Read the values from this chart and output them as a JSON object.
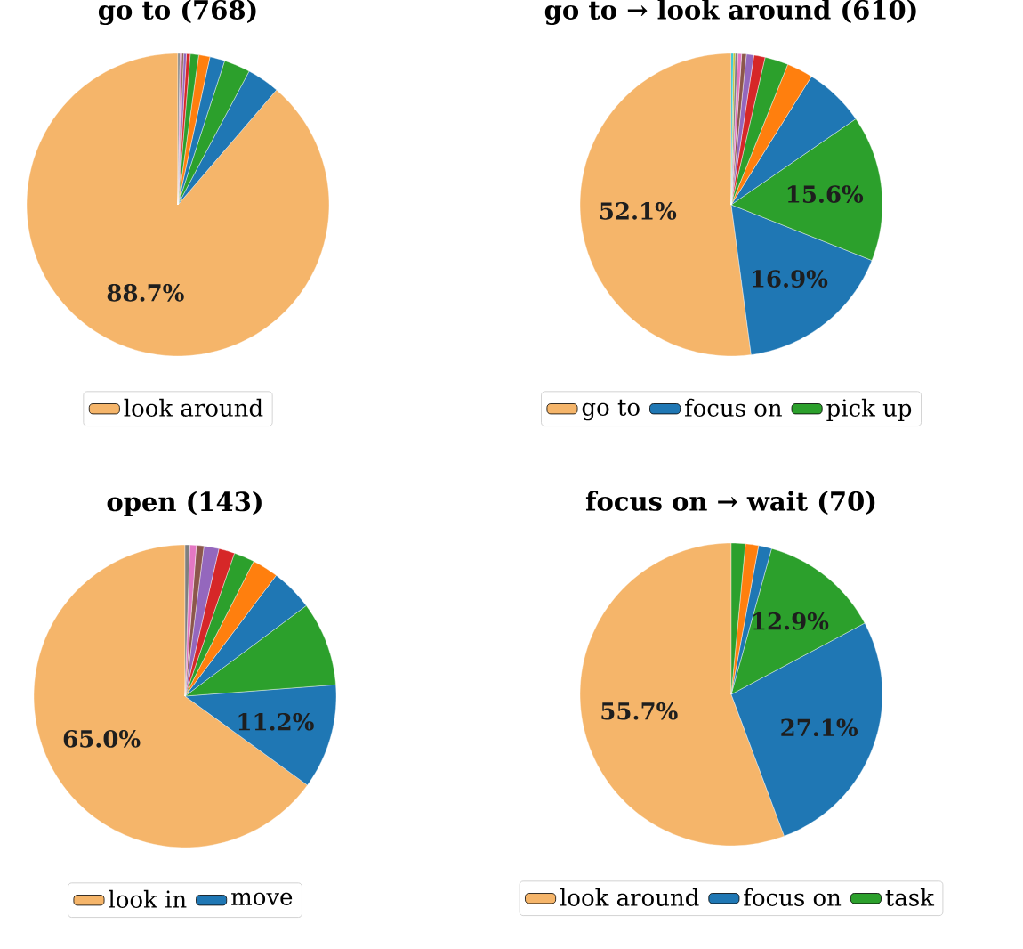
{
  "chart_data": [
    {
      "type": "pie",
      "title": "go to (768)",
      "legend": "bottom",
      "categories": [
        "look around",
        null,
        null,
        null,
        null,
        null,
        null,
        null,
        null,
        null,
        null
      ],
      "values": [
        88.7,
        3.5,
        2.8,
        1.6,
        1.2,
        0.9,
        0.4,
        0.3,
        0.2,
        0.2,
        0.2
      ],
      "colors": [
        "#f5b56a",
        "#1f77b4",
        "#2ca02c",
        "#1f77b4",
        "#ff7f0e",
        "#2ca02c",
        "#d62728",
        "#9467bd",
        "#8c564b",
        "#e377c2",
        "#7f7f7f"
      ],
      "value_labels": [
        "88.7%",
        null,
        null,
        null,
        null,
        null,
        null,
        null,
        null,
        null,
        null
      ]
    },
    {
      "type": "pie",
      "title": "go to → look around (610)",
      "legend": "bottom",
      "categories": [
        "go to",
        "focus on",
        "pick up",
        null,
        null,
        null,
        null,
        null,
        null,
        null,
        null,
        null,
        null
      ],
      "values": [
        52.1,
        16.9,
        15.6,
        6.5,
        2.8,
        2.5,
        1.2,
        0.8,
        0.5,
        0.4,
        0.3,
        0.2,
        0.2
      ],
      "colors": [
        "#f5b56a",
        "#1f77b4",
        "#2ca02c",
        "#1f77b4",
        "#ff7f0e",
        "#2ca02c",
        "#d62728",
        "#9467bd",
        "#8c564b",
        "#e377c2",
        "#7f7f7f",
        "#bcbd22",
        "#17becf"
      ],
      "value_labels": [
        "52.1%",
        "16.9%",
        "15.6%",
        null,
        null,
        null,
        null,
        null,
        null,
        null,
        null,
        null,
        null
      ]
    },
    {
      "type": "pie",
      "title": "open (143)",
      "legend": "bottom",
      "categories": [
        "look in",
        "move",
        null,
        null,
        null,
        null,
        null,
        null,
        null,
        null,
        null
      ],
      "values": [
        65.0,
        11.2,
        9.0,
        4.5,
        2.8,
        2.2,
        1.7,
        1.6,
        0.8,
        0.7,
        0.5
      ],
      "colors": [
        "#f5b56a",
        "#1f77b4",
        "#2ca02c",
        "#1f77b4",
        "#ff7f0e",
        "#2ca02c",
        "#d62728",
        "#9467bd",
        "#8c564b",
        "#e377c2",
        "#7f7f7f"
      ],
      "value_labels": [
        "65.0%",
        "11.2%",
        null,
        null,
        null,
        null,
        null,
        null,
        null,
        null,
        null
      ]
    },
    {
      "type": "pie",
      "title": "focus on → wait (70)",
      "legend": "bottom",
      "categories": [
        "look around",
        "focus on",
        "task",
        null,
        null,
        null
      ],
      "values": [
        55.7,
        27.1,
        12.9,
        1.4,
        1.4,
        1.5
      ],
      "colors": [
        "#f5b56a",
        "#1f77b4",
        "#2ca02c",
        "#1f77b4",
        "#ff7f0e",
        "#2ca02c"
      ],
      "value_labels": [
        "55.7%",
        "27.1%",
        "12.9%",
        null,
        null,
        null
      ]
    }
  ]
}
